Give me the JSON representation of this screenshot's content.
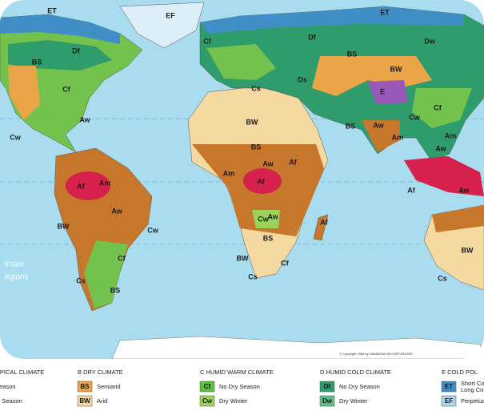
{
  "map": {
    "labels": [
      "ET",
      "EF",
      "ET",
      "Df",
      "BS",
      "Cf",
      "Cf",
      "Df",
      "Dw",
      "BS",
      "BW",
      "Cs",
      "Ds",
      "E",
      "Cf",
      "Cw",
      "Aw",
      "Cw",
      "BW",
      "BS",
      "Aw",
      "Am",
      "Am",
      "Aw",
      "BS",
      "Aw",
      "Af",
      "Am",
      "Af",
      "Am",
      "Af",
      "Af",
      "Aw",
      "Aw",
      "Aw",
      "Af",
      "Cw",
      "BW",
      "Cw",
      "BS",
      "BW",
      "Cf",
      "Cf",
      "Cs",
      "Cs",
      "BS",
      "BW",
      "Cs"
    ],
    "title_lines": [
      "imate",
      "egions"
    ],
    "copyright": "© Copyright 1985 by HAMMOND INCORPORATED"
  },
  "legend": {
    "groups": [
      {
        "heading": "OPICAL CLIMATE",
        "items": [
          {
            "lines": [
              "Season"
            ]
          },
          {
            "lines": [
              "ry Season"
            ]
          }
        ]
      },
      {
        "heading": "B  DRY CLIMATE",
        "items": [
          {
            "code": "BS",
            "lines": [
              "Semiarid"
            ]
          },
          {
            "code": "BW",
            "lines": [
              "Arid"
            ]
          }
        ]
      },
      {
        "heading": "C  HUMID WARM CLIMATE",
        "items": [
          {
            "code": "Cf",
            "lines": [
              "No Dry Season"
            ]
          },
          {
            "code": "Cw",
            "lines": [
              "Dry Winter"
            ]
          }
        ]
      },
      {
        "heading": "D  HUMID COLD CLIMATE",
        "items": [
          {
            "code": "Df",
            "lines": [
              "No Dry Season"
            ]
          },
          {
            "code": "Dw",
            "lines": [
              "Dry Winter"
            ]
          }
        ]
      },
      {
        "heading": "E  COLD POL",
        "items": [
          {
            "code": "ET",
            "lines": [
              "Short Co",
              "Long Col"
            ]
          },
          {
            "code": "EF",
            "lines": [
              "Perpetua"
            ]
          }
        ]
      }
    ]
  }
}
